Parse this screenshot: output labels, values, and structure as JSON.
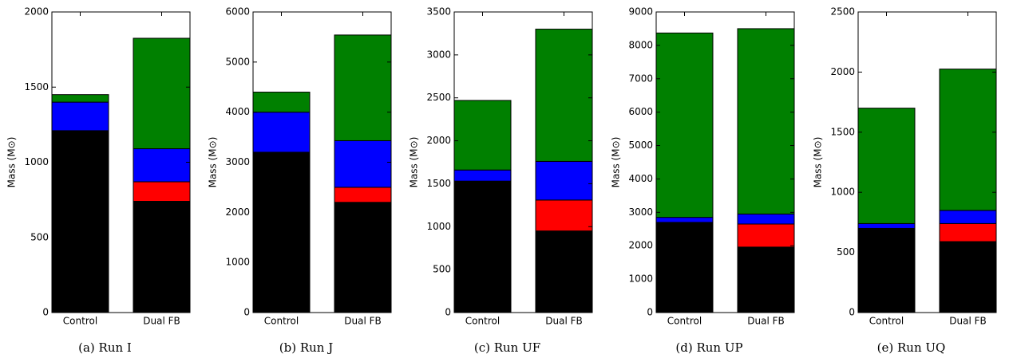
{
  "chart_data": [
    {
      "type": "bar",
      "stacked": true,
      "caption": "(a) Run I",
      "ylabel": "Mass (M⊙)",
      "categories": [
        "Control",
        "Dual FB"
      ],
      "series": [
        {
          "color": "#000000",
          "values": [
            1210,
            740
          ]
        },
        {
          "color": "#ff0000",
          "values": [
            0,
            130
          ]
        },
        {
          "color": "#0000ff",
          "values": [
            190,
            220
          ]
        },
        {
          "color": "#008000",
          "values": [
            50,
            735
          ]
        }
      ],
      "ylim": [
        0,
        2000
      ],
      "yticks": [
        0,
        500,
        1000,
        1500,
        2000
      ]
    },
    {
      "type": "bar",
      "stacked": true,
      "caption": "(b) Run J",
      "ylabel": "Mass (M⊙)",
      "categories": [
        "Control",
        "Dual FB"
      ],
      "series": [
        {
          "color": "#000000",
          "values": [
            3200,
            2200
          ]
        },
        {
          "color": "#ff0000",
          "values": [
            0,
            300
          ]
        },
        {
          "color": "#0000ff",
          "values": [
            800,
            930
          ]
        },
        {
          "color": "#008000",
          "values": [
            400,
            2110
          ]
        }
      ],
      "ylim": [
        0,
        6000
      ],
      "yticks": [
        0,
        1000,
        2000,
        3000,
        4000,
        5000,
        6000
      ]
    },
    {
      "type": "bar",
      "stacked": true,
      "caption": "(c) Run UF",
      "ylabel": "Mass (M⊙)",
      "categories": [
        "Control",
        "Dual FB"
      ],
      "series": [
        {
          "color": "#000000",
          "values": [
            1530,
            950
          ]
        },
        {
          "color": "#ff0000",
          "values": [
            0,
            360
          ]
        },
        {
          "color": "#0000ff",
          "values": [
            130,
            450
          ]
        },
        {
          "color": "#008000",
          "values": [
            810,
            1540
          ]
        }
      ],
      "ylim": [
        0,
        3500
      ],
      "yticks": [
        0,
        500,
        1000,
        1500,
        2000,
        2500,
        3000,
        3500
      ]
    },
    {
      "type": "bar",
      "stacked": true,
      "caption": "(d) Run UP",
      "ylabel": "Mass (M⊙)",
      "categories": [
        "Control",
        "Dual FB"
      ],
      "series": [
        {
          "color": "#000000",
          "values": [
            2700,
            1960
          ]
        },
        {
          "color": "#ff0000",
          "values": [
            0,
            690
          ]
        },
        {
          "color": "#0000ff",
          "values": [
            150,
            300
          ]
        },
        {
          "color": "#008000",
          "values": [
            5520,
            5550
          ]
        }
      ],
      "ylim": [
        0,
        9000
      ],
      "yticks": [
        0,
        1000,
        2000,
        3000,
        4000,
        5000,
        6000,
        7000,
        8000,
        9000
      ]
    },
    {
      "type": "bar",
      "stacked": true,
      "caption": "(e) Run UQ",
      "ylabel": "Mass (M⊙)",
      "categories": [
        "Control",
        "Dual FB"
      ],
      "series": [
        {
          "color": "#000000",
          "values": [
            700,
            590
          ]
        },
        {
          "color": "#ff0000",
          "values": [
            0,
            150
          ]
        },
        {
          "color": "#0000ff",
          "values": [
            40,
            110
          ]
        },
        {
          "color": "#008000",
          "values": [
            960,
            1175
          ]
        }
      ],
      "ylim": [
        0,
        2500
      ],
      "yticks": [
        0,
        500,
        1000,
        1500,
        2000,
        2500
      ]
    }
  ]
}
